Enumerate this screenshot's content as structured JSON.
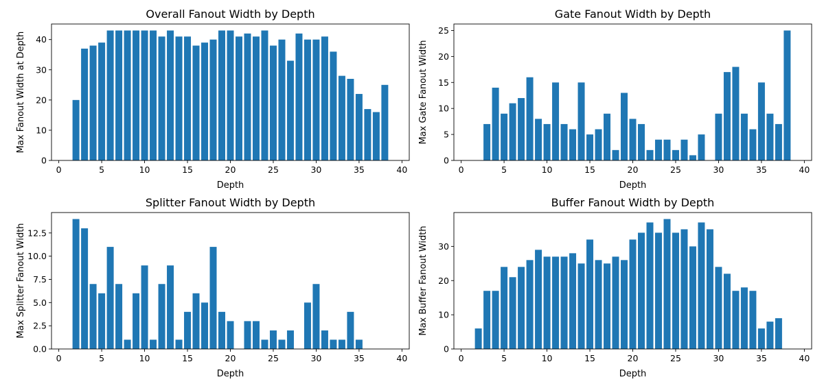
{
  "colors": {
    "bar": "#1f77b4",
    "axis": "#000000",
    "background": "#ffffff"
  },
  "chart_data": [
    {
      "type": "bar",
      "title": "Overall Fanout Width by Depth",
      "xlabel": "Depth",
      "ylabel": "Max Fanout Width at Depth",
      "xlim": [
        -0.85,
        40.85
      ],
      "ylim": [
        0,
        45.15
      ],
      "xticks": [
        "0",
        "5",
        "10",
        "15",
        "20",
        "25",
        "30",
        "35",
        "40"
      ],
      "yticks": [
        "0",
        "10",
        "20",
        "30",
        "40"
      ],
      "x": [
        2,
        3,
        4,
        5,
        6,
        7,
        8,
        9,
        10,
        11,
        12,
        13,
        14,
        15,
        16,
        17,
        18,
        19,
        20,
        21,
        22,
        23,
        24,
        25,
        26,
        27,
        28,
        29,
        30,
        31,
        32,
        33,
        34,
        35,
        36,
        37,
        38
      ],
      "values": [
        20,
        37,
        38,
        39,
        43,
        43,
        43,
        43,
        43,
        43,
        41,
        43,
        41,
        41,
        38,
        39,
        40,
        43,
        43,
        41,
        42,
        41,
        43,
        38,
        40,
        33,
        42,
        40,
        40,
        41,
        36,
        28,
        27,
        22,
        17,
        16,
        25
      ]
    },
    {
      "type": "bar",
      "title": "Gate Fanout Width by Depth",
      "xlabel": "Depth",
      "ylabel": "Max Gate Fanout Width",
      "xlim": [
        -0.85,
        40.85
      ],
      "ylim": [
        0,
        26.25
      ],
      "xticks": [
        "0",
        "5",
        "10",
        "15",
        "20",
        "25",
        "30",
        "35",
        "40"
      ],
      "yticks": [
        "0",
        "5",
        "10",
        "15",
        "20",
        "25"
      ],
      "x": [
        2,
        3,
        4,
        5,
        6,
        7,
        8,
        9,
        10,
        11,
        12,
        13,
        14,
        15,
        16,
        17,
        18,
        19,
        20,
        21,
        22,
        23,
        24,
        25,
        26,
        27,
        28,
        29,
        30,
        31,
        32,
        33,
        34,
        35,
        36,
        37,
        38
      ],
      "values": [
        0,
        7,
        14,
        9,
        11,
        12,
        16,
        8,
        7,
        15,
        7,
        6,
        15,
        5,
        6,
        9,
        2,
        13,
        8,
        7,
        2,
        4,
        4,
        2,
        4,
        1,
        5,
        0,
        9,
        17,
        18,
        9,
        6,
        15,
        9,
        7,
        25
      ]
    },
    {
      "type": "bar",
      "title": "Splitter Fanout Width by Depth",
      "xlabel": "Depth",
      "ylabel": "Max Splitter Fanout Width",
      "xlim": [
        -0.85,
        40.85
      ],
      "ylim": [
        0,
        14.7
      ],
      "xticks": [
        "0",
        "5",
        "10",
        "15",
        "20",
        "25",
        "30",
        "35",
        "40"
      ],
      "yticks": [
        "0.0",
        "2.5",
        "5.0",
        "7.5",
        "10.0",
        "12.5"
      ],
      "x": [
        2,
        3,
        4,
        5,
        6,
        7,
        8,
        9,
        10,
        11,
        12,
        13,
        14,
        15,
        16,
        17,
        18,
        19,
        20,
        21,
        22,
        23,
        24,
        25,
        26,
        27,
        28,
        29,
        30,
        31,
        32,
        33,
        34,
        35,
        36,
        37,
        38
      ],
      "values": [
        14,
        13,
        7,
        6,
        11,
        7,
        1,
        6,
        9,
        1,
        7,
        9,
        1,
        4,
        6,
        5,
        11,
        4,
        3,
        0,
        3,
        3,
        1,
        2,
        1,
        2,
        0,
        5,
        7,
        2,
        1,
        1,
        4,
        1,
        0,
        0,
        0
      ]
    },
    {
      "type": "bar",
      "title": "Buffer Fanout Width by Depth",
      "xlabel": "Depth",
      "ylabel": "Max Buffer Fanout Width",
      "xlim": [
        -0.85,
        40.85
      ],
      "ylim": [
        0,
        39.9
      ],
      "xticks": [
        "0",
        "5",
        "10",
        "15",
        "20",
        "25",
        "30",
        "35",
        "40"
      ],
      "yticks": [
        "0",
        "10",
        "20",
        "30"
      ],
      "x": [
        2,
        3,
        4,
        5,
        6,
        7,
        8,
        9,
        10,
        11,
        12,
        13,
        14,
        15,
        16,
        17,
        18,
        19,
        20,
        21,
        22,
        23,
        24,
        25,
        26,
        27,
        28,
        29,
        30,
        31,
        32,
        33,
        34,
        35,
        36,
        37
      ],
      "values": [
        6,
        17,
        17,
        24,
        21,
        24,
        26,
        29,
        27,
        27,
        27,
        28,
        25,
        32,
        26,
        25,
        27,
        26,
        32,
        34,
        37,
        34,
        38,
        34,
        35,
        30,
        37,
        35,
        24,
        22,
        17,
        18,
        17,
        6,
        8,
        9
      ]
    }
  ]
}
